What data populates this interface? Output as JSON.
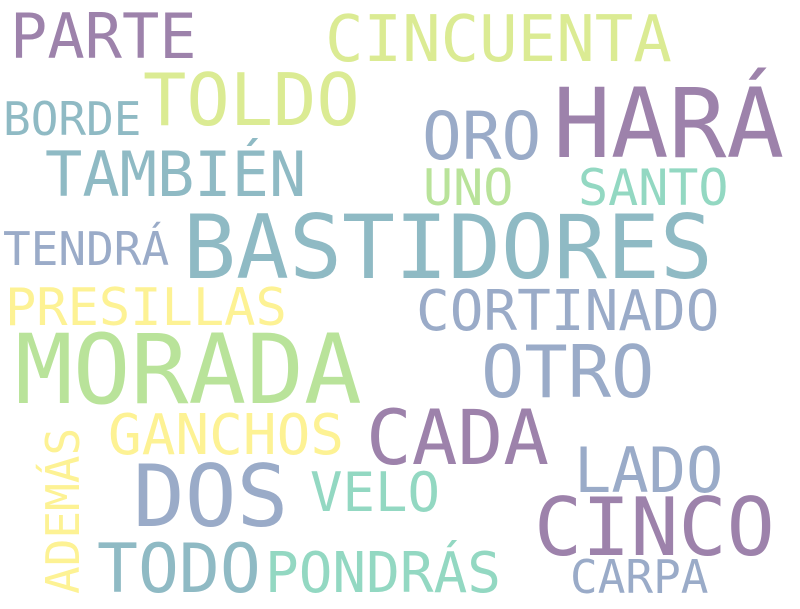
{
  "palette": {
    "purple": "#9d82ab",
    "lime": "#dbeb93",
    "teal": "#8fbac4",
    "green": "#b9e39a",
    "mint": "#93d8c2",
    "slate": "#9aabc8",
    "yellow": "#fdf294"
  },
  "words": [
    {
      "text": "PARTE",
      "color": "purple"
    },
    {
      "text": "CINCUENTA",
      "color": "lime"
    },
    {
      "text": "TOLDO",
      "color": "lime"
    },
    {
      "text": "HARÁ",
      "color": "purple"
    },
    {
      "text": "BORDE",
      "color": "teal"
    },
    {
      "text": "ORO",
      "color": "slate"
    },
    {
      "text": "TAMBIÉN",
      "color": "teal"
    },
    {
      "text": "UNO",
      "color": "green"
    },
    {
      "text": "SANTO",
      "color": "mint"
    },
    {
      "text": "TENDRÁ",
      "color": "slate"
    },
    {
      "text": "BASTIDORES",
      "color": "teal"
    },
    {
      "text": "PRESILLAS",
      "color": "yellow"
    },
    {
      "text": "CORTINADO",
      "color": "slate"
    },
    {
      "text": "MORADA",
      "color": "green"
    },
    {
      "text": "OTRO",
      "color": "slate"
    },
    {
      "text": "GANCHOS",
      "color": "yellow"
    },
    {
      "text": "CADA",
      "color": "purple"
    },
    {
      "text": "ADEMÁS",
      "color": "yellow"
    },
    {
      "text": "LADO",
      "color": "slate"
    },
    {
      "text": "DOS",
      "color": "slate"
    },
    {
      "text": "VELO",
      "color": "mint"
    },
    {
      "text": "CINCO",
      "color": "purple"
    },
    {
      "text": "TODO",
      "color": "teal"
    },
    {
      "text": "PONDRÁS",
      "color": "mint"
    },
    {
      "text": "CARPA",
      "color": "slate"
    }
  ]
}
